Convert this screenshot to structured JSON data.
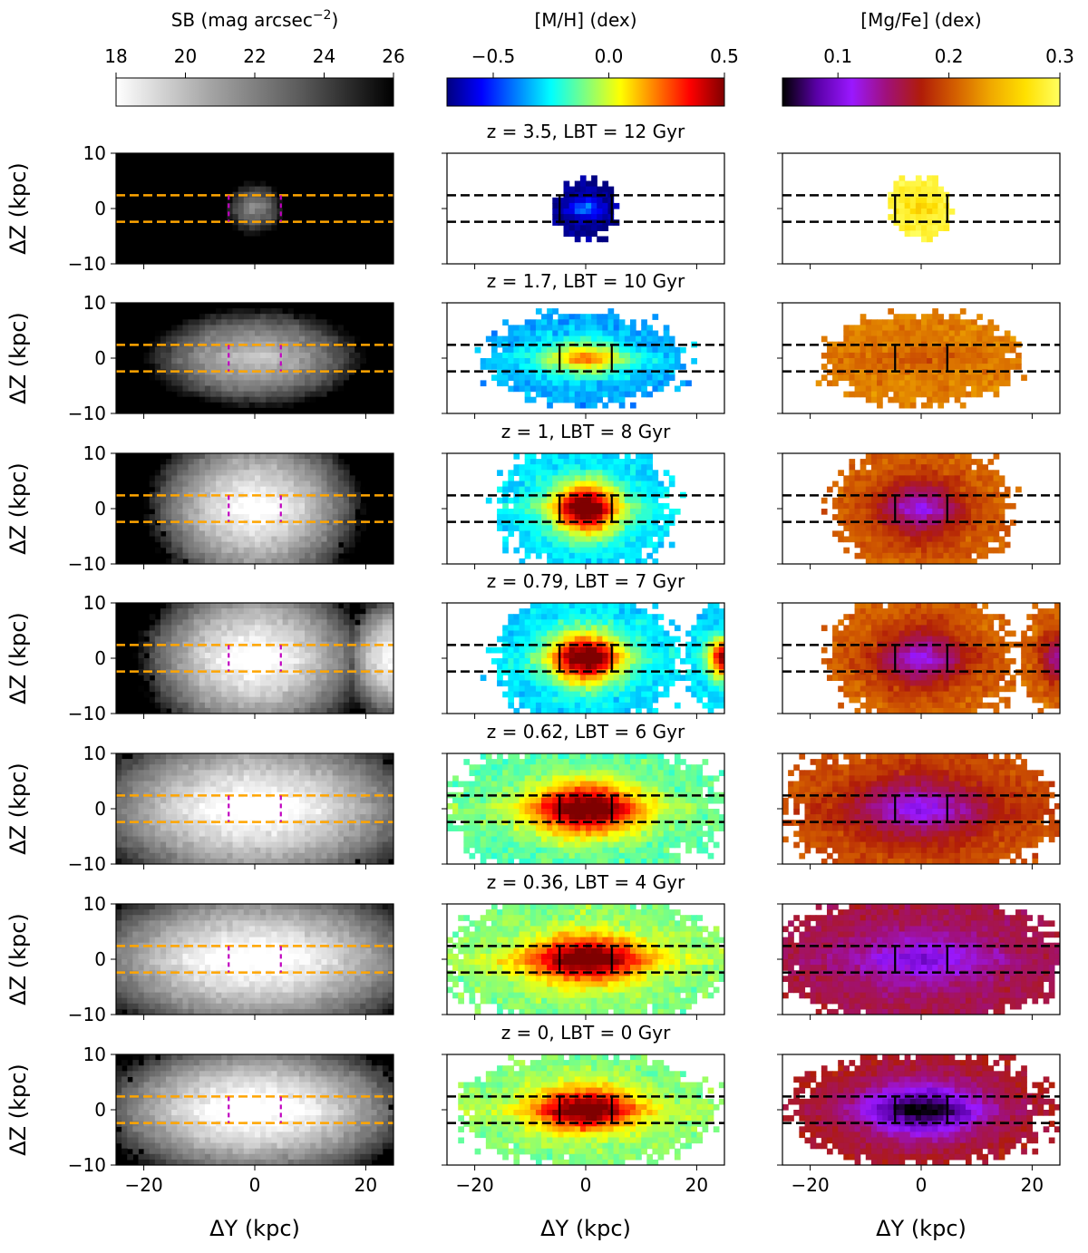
{
  "chart_data": {
    "type": "heatmap",
    "title": "",
    "layout": "7 rows (redshift snapshots) x 3 columns (maps)",
    "xlabel": "ΔY (kpc)",
    "ylabel": "ΔZ (kpc)",
    "xlim": [
      -25,
      25
    ],
    "ylim": [
      -10,
      10
    ],
    "xticks": [
      -20,
      0,
      20
    ],
    "xtick_labels": [
      "−20",
      "0",
      "20"
    ],
    "yticks": [
      10,
      0,
      -10
    ],
    "ytick_labels": [
      "10",
      "0",
      "−10"
    ],
    "box_ranges": {
      "dY_halfwidth": 4.7,
      "dZ_halfheight": 2.4
    },
    "columns": [
      {
        "name": "sb",
        "colorbar_label": "SB (mag arcsec",
        "colorbar_label_sup": "−2",
        "colorbar_label_end": ")",
        "range": [
          18,
          26
        ],
        "ticks": [
          18,
          20,
          22,
          24,
          26
        ],
        "tick_labels": [
          "18",
          "20",
          "22",
          "24",
          "26"
        ],
        "colormap": "gray (light = bright)",
        "colors": [
          "#ffffff",
          "#a6a6a6",
          "#5a5a5a",
          "#000000"
        ]
      },
      {
        "name": "mh",
        "colorbar_label": "[M/H] (dex)",
        "range": [
          -0.7,
          0.5
        ],
        "ticks": [
          -0.5,
          0.0,
          0.5
        ],
        "tick_labels": [
          "−0.5",
          "0.0",
          "0.5"
        ],
        "colormap": "jet",
        "colors": [
          "#00007f",
          "#0000ff",
          "#007fff",
          "#00ffff",
          "#7fff7f",
          "#ffff00",
          "#ff7f00",
          "#ff0000",
          "#7f0000"
        ]
      },
      {
        "name": "mgfe",
        "colorbar_label": "[Mg/Fe] (dex)",
        "range": [
          0.05,
          0.3
        ],
        "ticks": [
          0.1,
          0.2,
          0.3
        ],
        "tick_labels": [
          "0.1",
          "0.2",
          "0.3"
        ],
        "colormap": "gnuplot",
        "colors": [
          "#000000",
          "#5a00a8",
          "#9a18ff",
          "#a0107a",
          "#b01c08",
          "#d46000",
          "#f0a800",
          "#ffe000",
          "#ffff60"
        ]
      }
    ],
    "snapshots": [
      {
        "z": "3.5",
        "lbt_gyr": 12,
        "title": "z = 3.5, LBT = 12 Gyr",
        "extent_y": 5.5,
        "extent_z": 5.5,
        "peak_sb": 22.5,
        "mh_center": -0.55,
        "mh_outer": -0.7,
        "mgfe_center": 0.28,
        "mgfe_outer": 0.29,
        "companion": null
      },
      {
        "z": "1.7",
        "lbt_gyr": 10,
        "title": "z = 1.7, LBT = 10 Gyr",
        "extent_y": 17,
        "extent_z": 8,
        "peak_sb": 20.5,
        "mh_center": 0.05,
        "mh_outer": -0.35,
        "mgfe_center": 0.22,
        "mgfe_outer": 0.22,
        "companion": null
      },
      {
        "z": "1",
        "lbt_gyr": 8,
        "title": "z = 1, LBT = 8 Gyr",
        "extent_y": 15,
        "extent_z": 12,
        "peak_sb": 18.5,
        "mh_center": 0.45,
        "mh_outer": -0.3,
        "mgfe_center": 0.14,
        "mgfe_outer": 0.21,
        "companion": null
      },
      {
        "z": "0.79",
        "lbt_gyr": 7,
        "title": "z = 0.79, LBT = 7 Gyr",
        "extent_y": 16,
        "extent_z": 12,
        "peak_sb": 18.3,
        "mh_center": 0.45,
        "mh_outer": -0.3,
        "mgfe_center": 0.14,
        "mgfe_outer": 0.21,
        "companion": {
          "y": 25,
          "z": 0,
          "size": 7
        }
      },
      {
        "z": "0.62",
        "lbt_gyr": 6,
        "title": "z = 0.62, LBT = 6 Gyr",
        "extent_y": 24,
        "extent_z": 12,
        "peak_sb": 18.2,
        "mh_center": 0.45,
        "mh_outer": -0.15,
        "mgfe_center": 0.13,
        "mgfe_outer": 0.2,
        "companion": null
      },
      {
        "z": "0.36",
        "lbt_gyr": 4,
        "title": "z = 0.36, LBT = 4 Gyr",
        "extent_y": 25,
        "extent_z": 11,
        "peak_sb": 18.2,
        "mh_center": 0.45,
        "mh_outer": -0.1,
        "mgfe_center": 0.12,
        "mgfe_outer": 0.16,
        "companion": null
      },
      {
        "z": "0",
        "lbt_gyr": 0,
        "title": "z = 0, LBT = 0 Gyr",
        "extent_y": 22,
        "extent_z": 10,
        "peak_sb": 18.0,
        "mh_center": 0.45,
        "mh_outer": -0.1,
        "mgfe_center": 0.07,
        "mgfe_outer": 0.17,
        "companion": null
      }
    ]
  }
}
